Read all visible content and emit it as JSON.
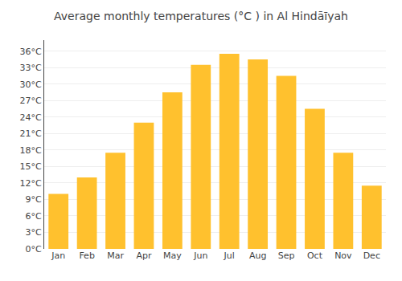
{
  "chart_data": {
    "type": "bar",
    "title": "Average monthly temperatures (°C ) in Al Hindāīyah",
    "categories": [
      "Jan",
      "Feb",
      "Mar",
      "Apr",
      "May",
      "Jun",
      "Jul",
      "Aug",
      "Sep",
      "Oct",
      "Nov",
      "Dec"
    ],
    "values": [
      10,
      13,
      17.5,
      23,
      28.5,
      33.5,
      35.5,
      34.5,
      31.5,
      25.5,
      17.5,
      11.5
    ],
    "color": "#FFC12E",
    "ylim": [
      0,
      38
    ],
    "yticks": [
      {
        "value": 0,
        "label": "0°C"
      },
      {
        "value": 3,
        "label": "3°C"
      },
      {
        "value": 6,
        "label": "6°C"
      },
      {
        "value": 9,
        "label": "9°C"
      },
      {
        "value": 12,
        "label": "12°C"
      },
      {
        "value": 15,
        "label": "15°C"
      },
      {
        "value": 18,
        "label": "18°C"
      },
      {
        "value": 21,
        "label": "21°C"
      },
      {
        "value": 24,
        "label": "24°C"
      },
      {
        "value": 27,
        "label": "27°C"
      },
      {
        "value": 30,
        "label": "30°C"
      },
      {
        "value": 33,
        "label": "33°C"
      },
      {
        "value": 36,
        "label": "36°C"
      }
    ],
    "grid": true
  }
}
